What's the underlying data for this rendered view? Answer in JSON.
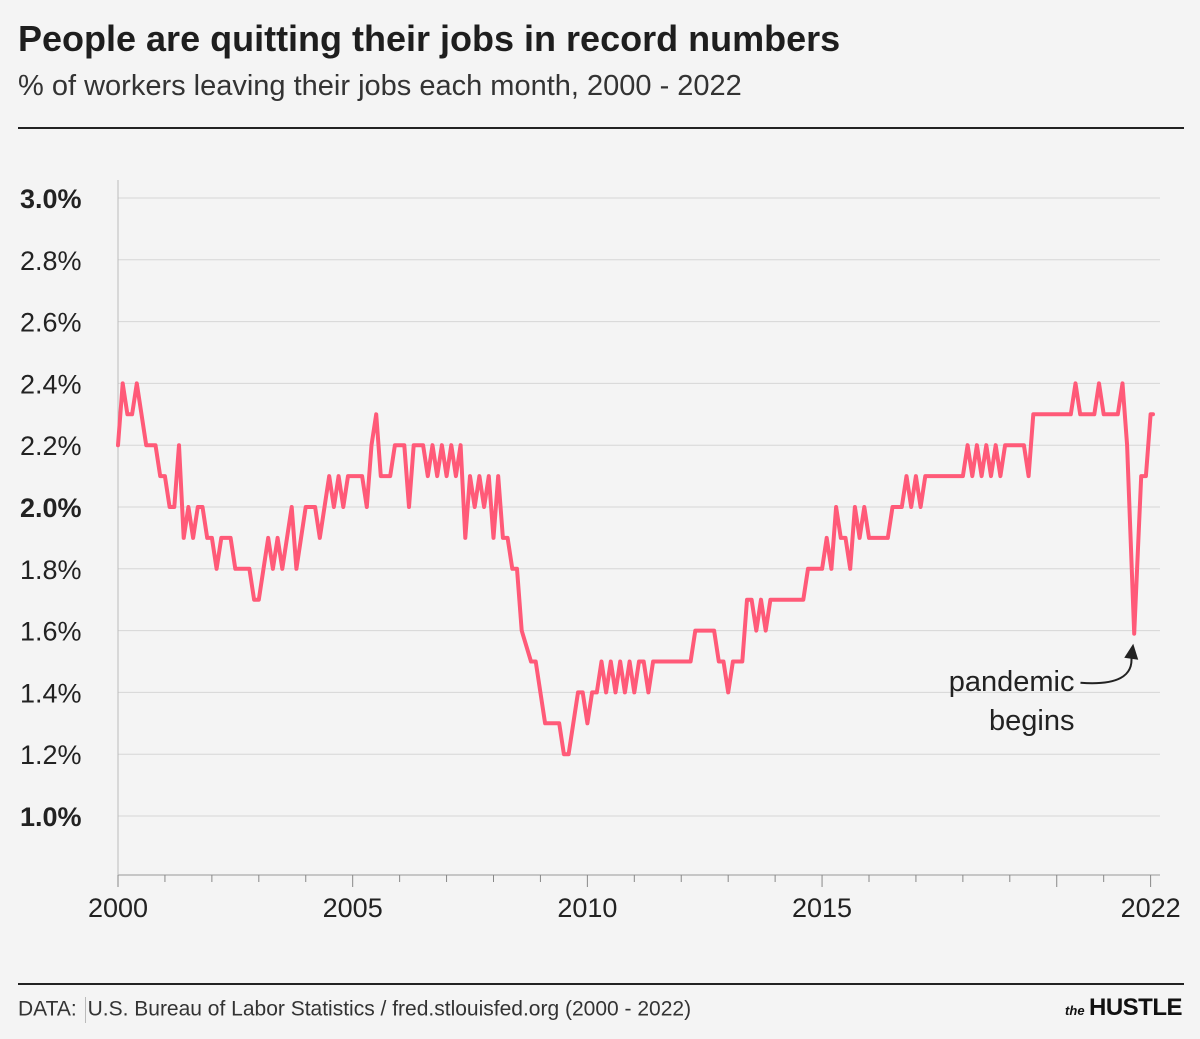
{
  "header": {
    "title": "People are quitting their jobs in record numbers",
    "subtitle": "% of workers leaving their jobs each month, 2000 - 2022"
  },
  "footer": {
    "source_prefix": "DATA:",
    "source_text": "U.S. Bureau of Labor Statistics / fred.stlouisfed.org (2000 - 2022)",
    "brand_small": "the",
    "brand_large": "HUSTLE"
  },
  "colors": {
    "line": "#ff5a78",
    "grid": "#d6d6d6",
    "background": "#f4f4f4"
  },
  "chart_data": {
    "type": "line",
    "title": "People are quitting their jobs in record numbers",
    "subtitle": "% of workers leaving their jobs each month, 2000 - 2022",
    "xlabel": "",
    "ylabel": "",
    "xlim": [
      2000,
      2022.2
    ],
    "ylim": [
      1.0,
      3.0
    ],
    "grid": true,
    "y_ticks": [
      {
        "value": 3.0,
        "label": "3.0%",
        "bold": true
      },
      {
        "value": 2.8,
        "label": "2.8%",
        "bold": false
      },
      {
        "value": 2.6,
        "label": "2.6%",
        "bold": false
      },
      {
        "value": 2.4,
        "label": "2.4%",
        "bold": false
      },
      {
        "value": 2.2,
        "label": "2.2%",
        "bold": false
      },
      {
        "value": 2.0,
        "label": "2.0%",
        "bold": true
      },
      {
        "value": 1.8,
        "label": "1.8%",
        "bold": false
      },
      {
        "value": 1.6,
        "label": "1.6%",
        "bold": false
      },
      {
        "value": 1.4,
        "label": "1.4%",
        "bold": false
      },
      {
        "value": 1.2,
        "label": "1.2%",
        "bold": false
      },
      {
        "value": 1.0,
        "label": "1.0%",
        "bold": true
      }
    ],
    "x_ticks": [
      {
        "value": 2000,
        "label": "2000"
      },
      {
        "value": 2005,
        "label": "2005"
      },
      {
        "value": 2010,
        "label": "2010"
      },
      {
        "value": 2015,
        "label": "2015"
      },
      {
        "value": 2022,
        "label": "2022"
      }
    ],
    "series": [
      {
        "points": [
          [
            2000.0,
            2.2
          ],
          [
            2000.1,
            2.4
          ],
          [
            2000.2,
            2.3
          ],
          [
            2000.3,
            2.3
          ],
          [
            2000.4,
            2.4
          ],
          [
            2000.6,
            2.2
          ],
          [
            2000.8,
            2.2
          ],
          [
            2000.9,
            2.1
          ],
          [
            2001.0,
            2.1
          ],
          [
            2001.1,
            2.0
          ],
          [
            2001.2,
            2.0
          ],
          [
            2001.3,
            2.2
          ],
          [
            2001.4,
            1.9
          ],
          [
            2001.5,
            2.0
          ],
          [
            2001.6,
            1.9
          ],
          [
            2001.7,
            2.0
          ],
          [
            2001.8,
            2.0
          ],
          [
            2001.9,
            1.9
          ],
          [
            2002.0,
            1.9
          ],
          [
            2002.1,
            1.8
          ],
          [
            2002.2,
            1.9
          ],
          [
            2002.4,
            1.9
          ],
          [
            2002.5,
            1.8
          ],
          [
            2002.8,
            1.8
          ],
          [
            2002.9,
            1.7
          ],
          [
            2003.0,
            1.7
          ],
          [
            2003.1,
            1.8
          ],
          [
            2003.2,
            1.9
          ],
          [
            2003.3,
            1.8
          ],
          [
            2003.4,
            1.9
          ],
          [
            2003.5,
            1.8
          ],
          [
            2003.6,
            1.9
          ],
          [
            2003.7,
            2.0
          ],
          [
            2003.8,
            1.8
          ],
          [
            2004.0,
            2.0
          ],
          [
            2004.2,
            2.0
          ],
          [
            2004.3,
            1.9
          ],
          [
            2004.4,
            2.0
          ],
          [
            2004.5,
            2.1
          ],
          [
            2004.6,
            2.0
          ],
          [
            2004.7,
            2.1
          ],
          [
            2004.8,
            2.0
          ],
          [
            2004.9,
            2.1
          ],
          [
            2005.2,
            2.1
          ],
          [
            2005.3,
            2.0
          ],
          [
            2005.4,
            2.2
          ],
          [
            2005.5,
            2.3
          ],
          [
            2005.6,
            2.1
          ],
          [
            2005.8,
            2.1
          ],
          [
            2005.9,
            2.2
          ],
          [
            2006.1,
            2.2
          ],
          [
            2006.2,
            2.0
          ],
          [
            2006.3,
            2.2
          ],
          [
            2006.5,
            2.2
          ],
          [
            2006.6,
            2.1
          ],
          [
            2006.7,
            2.2
          ],
          [
            2006.8,
            2.1
          ],
          [
            2006.9,
            2.2
          ],
          [
            2007.0,
            2.1
          ],
          [
            2007.1,
            2.2
          ],
          [
            2007.2,
            2.1
          ],
          [
            2007.3,
            2.2
          ],
          [
            2007.4,
            1.9
          ],
          [
            2007.5,
            2.1
          ],
          [
            2007.6,
            2.0
          ],
          [
            2007.7,
            2.1
          ],
          [
            2007.8,
            2.0
          ],
          [
            2007.9,
            2.1
          ],
          [
            2008.0,
            1.9
          ],
          [
            2008.1,
            2.1
          ],
          [
            2008.2,
            1.9
          ],
          [
            2008.3,
            1.9
          ],
          [
            2008.4,
            1.8
          ],
          [
            2008.5,
            1.8
          ],
          [
            2008.6,
            1.6
          ],
          [
            2008.8,
            1.5
          ],
          [
            2008.9,
            1.5
          ],
          [
            2009.1,
            1.3
          ],
          [
            2009.4,
            1.3
          ],
          [
            2009.5,
            1.2
          ],
          [
            2009.6,
            1.2
          ],
          [
            2009.8,
            1.4
          ],
          [
            2009.9,
            1.4
          ],
          [
            2010.0,
            1.3
          ],
          [
            2010.1,
            1.4
          ],
          [
            2010.2,
            1.4
          ],
          [
            2010.3,
            1.5
          ],
          [
            2010.4,
            1.4
          ],
          [
            2010.5,
            1.5
          ],
          [
            2010.6,
            1.4
          ],
          [
            2010.7,
            1.5
          ],
          [
            2010.8,
            1.4
          ],
          [
            2010.9,
            1.5
          ],
          [
            2011.0,
            1.4
          ],
          [
            2011.1,
            1.5
          ],
          [
            2011.2,
            1.5
          ],
          [
            2011.3,
            1.4
          ],
          [
            2011.4,
            1.5
          ],
          [
            2012.2,
            1.5
          ],
          [
            2012.3,
            1.6
          ],
          [
            2012.7,
            1.6
          ],
          [
            2012.8,
            1.5
          ],
          [
            2012.9,
            1.5
          ],
          [
            2013.0,
            1.4
          ],
          [
            2013.1,
            1.5
          ],
          [
            2013.3,
            1.5
          ],
          [
            2013.4,
            1.7
          ],
          [
            2013.5,
            1.7
          ],
          [
            2013.6,
            1.6
          ],
          [
            2013.7,
            1.7
          ],
          [
            2013.8,
            1.6
          ],
          [
            2013.9,
            1.7
          ],
          [
            2014.6,
            1.7
          ],
          [
            2014.7,
            1.8
          ],
          [
            2015.0,
            1.8
          ],
          [
            2015.1,
            1.9
          ],
          [
            2015.2,
            1.8
          ],
          [
            2015.3,
            2.0
          ],
          [
            2015.4,
            1.9
          ],
          [
            2015.5,
            1.9
          ],
          [
            2015.6,
            1.8
          ],
          [
            2015.7,
            2.0
          ],
          [
            2015.8,
            1.9
          ],
          [
            2015.9,
            2.0
          ],
          [
            2016.0,
            1.9
          ],
          [
            2016.4,
            1.9
          ],
          [
            2016.5,
            2.0
          ],
          [
            2016.7,
            2.0
          ],
          [
            2016.8,
            2.1
          ],
          [
            2016.9,
            2.0
          ],
          [
            2017.0,
            2.1
          ],
          [
            2017.1,
            2.0
          ],
          [
            2017.2,
            2.1
          ],
          [
            2018.0,
            2.1
          ],
          [
            2018.1,
            2.2
          ],
          [
            2018.2,
            2.1
          ],
          [
            2018.3,
            2.2
          ],
          [
            2018.4,
            2.1
          ],
          [
            2018.5,
            2.2
          ],
          [
            2018.6,
            2.1
          ],
          [
            2018.7,
            2.2
          ],
          [
            2018.8,
            2.1
          ],
          [
            2018.9,
            2.2
          ],
          [
            2019.3,
            2.2
          ],
          [
            2019.4,
            2.1
          ],
          [
            2019.5,
            2.3
          ],
          [
            2020.3,
            2.3
          ],
          [
            2020.4,
            2.4
          ],
          [
            2020.5,
            2.3
          ],
          [
            2020.8,
            2.3
          ],
          [
            2020.9,
            2.4
          ],
          [
            2021.0,
            2.3
          ],
          [
            2021.3,
            2.3
          ],
          [
            2021.4,
            2.4
          ],
          [
            2021.5,
            2.2
          ],
          [
            2021.65,
            1.59
          ],
          [
            2021.8,
            2.1
          ],
          [
            2021.9,
            2.1
          ],
          [
            2022.0,
            2.3
          ],
          [
            2022.05,
            2.3
          ]
        ]
      }
    ],
    "annotations": [
      {
        "text_line1": "pandemic",
        "text_line2": "begins",
        "x": 2020.25,
        "y": 1.58
      }
    ]
  }
}
